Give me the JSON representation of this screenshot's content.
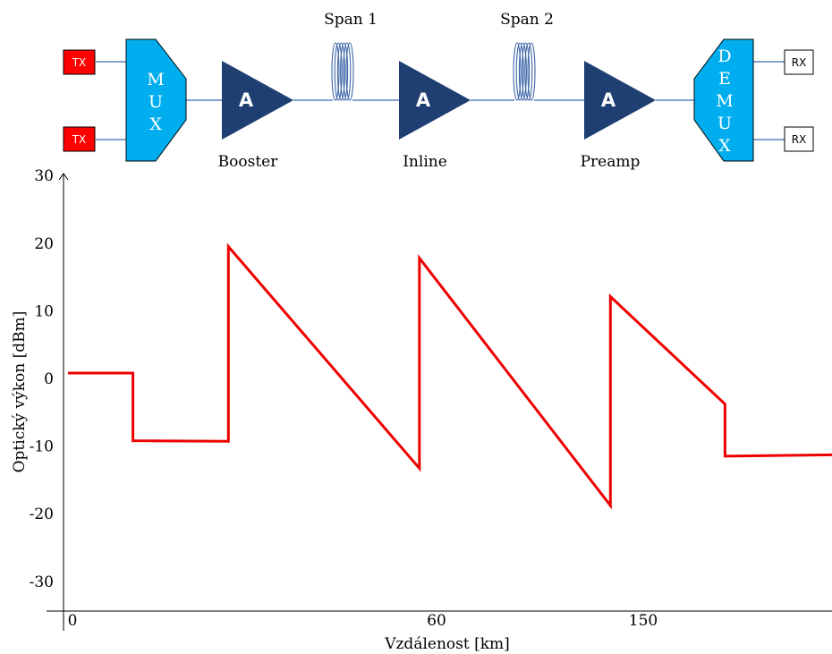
{
  "diagram": {
    "transmitters": [
      "TX",
      "TX"
    ],
    "receivers": [
      "RX",
      "RX"
    ],
    "mux_label": [
      "M",
      "U",
      "X"
    ],
    "demux_label": [
      "D",
      "E",
      "M",
      "U",
      "X"
    ],
    "amplifiers": [
      {
        "symbol": "A",
        "label": "Booster"
      },
      {
        "symbol": "A",
        "label": "Inline"
      },
      {
        "symbol": "A",
        "label": "Preamp"
      }
    ],
    "spans": [
      "Span 1",
      "Span 2"
    ],
    "colors": {
      "tx_fill": "#ff0000",
      "mux_fill": "#00aeef",
      "amp_fill": "#1f3f73",
      "fiber": "#3f67a8",
      "line": "#5b83c0"
    }
  },
  "chart_data": {
    "type": "line",
    "xlabel": "Vzdálenost [km]",
    "ylabel": "Optický výkon [dBm]",
    "x_tick_labels": [
      "0",
      "60",
      "150"
    ],
    "y_ticks": [
      30,
      20,
      10,
      0,
      -10,
      -20,
      -30
    ],
    "y_tick_labels": [
      "30",
      "20",
      "10",
      "0",
      "-10",
      "-20",
      "-30"
    ],
    "ylim": [
      -35,
      30
    ],
    "series": [
      {
        "color": "#ee0000",
        "points": [
          [
            0,
            0.8
          ],
          [
            0.085,
            0.8
          ],
          [
            0.085,
            -9.2
          ],
          [
            0.21,
            -9.3
          ],
          [
            0.21,
            19.5
          ],
          [
            0.46,
            -13.3
          ],
          [
            0.46,
            17.8
          ],
          [
            0.71,
            -18.8
          ],
          [
            0.71,
            12.1
          ],
          [
            0.86,
            -3.8
          ],
          [
            0.86,
            -11.5
          ],
          [
            1.0,
            -11.3
          ]
        ]
      }
    ]
  }
}
